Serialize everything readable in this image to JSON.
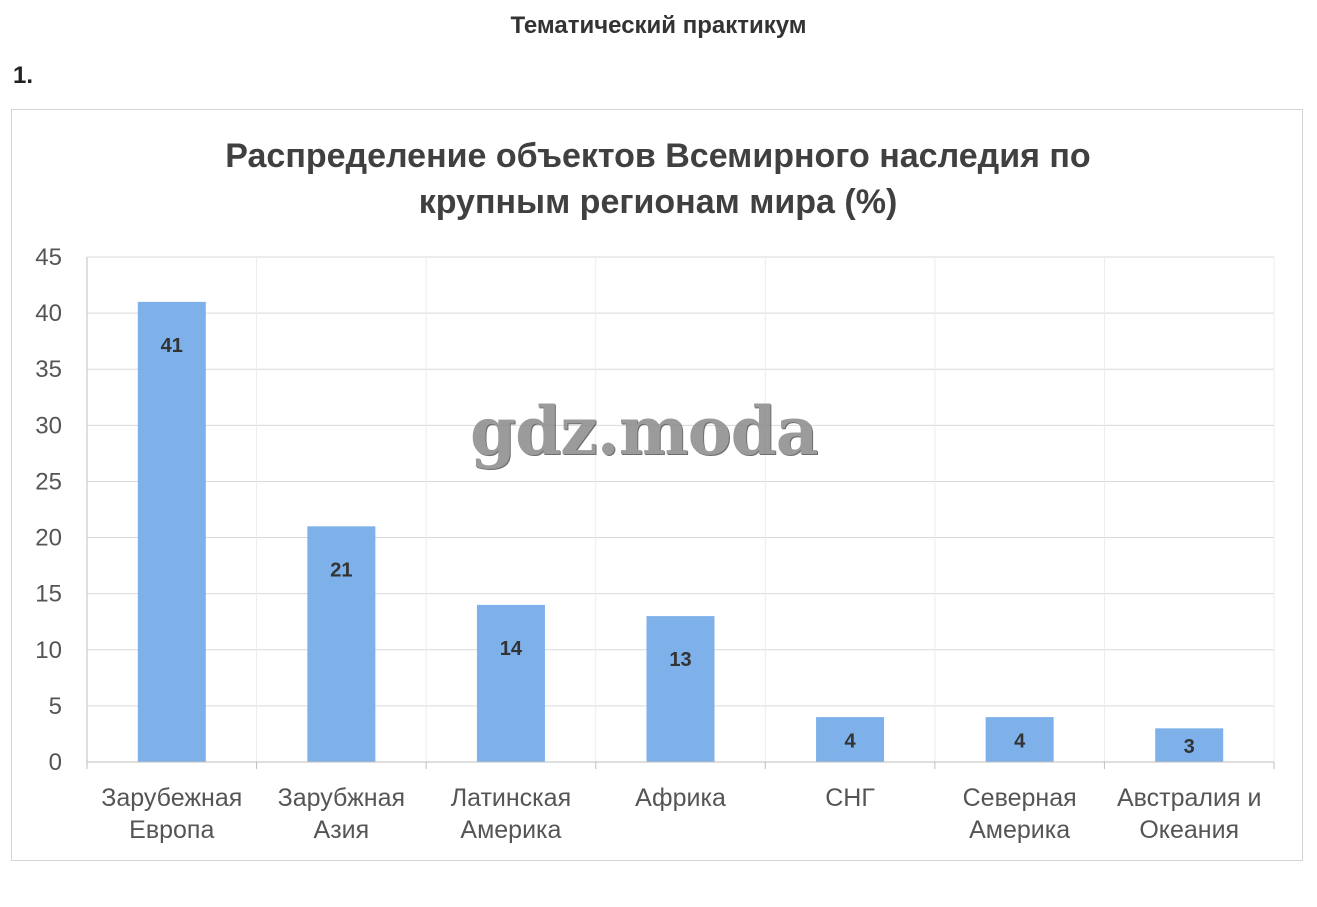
{
  "page": {
    "heading": "Тематический практикум",
    "task_number": "1."
  },
  "watermark": "gdz.moda",
  "colors": {
    "bar": "#7eb0ea",
    "grid": "#d9d9d9",
    "axis": "#bfbfbf",
    "title": "#404040",
    "text": "#555555"
  },
  "chart_data": {
    "type": "bar",
    "title_lines": [
      "Распределение объектов Всемирного наследия по",
      "крупным регионам мира (%)"
    ],
    "categories": [
      [
        "Зарубежная",
        "Европа"
      ],
      [
        "Зарубжная",
        "Азия"
      ],
      [
        "Латинская",
        "Америка"
      ],
      [
        "Африка"
      ],
      [
        "СНГ"
      ],
      [
        "Северная",
        "Америка"
      ],
      [
        "Австралия и",
        "Океания"
      ]
    ],
    "values": [
      41,
      21,
      14,
      13,
      4,
      4,
      3
    ],
    "data_labels": [
      "41",
      "21",
      "14",
      "13",
      "4",
      "4",
      "3"
    ],
    "ylim": [
      0,
      45
    ],
    "yticks": [
      0,
      5,
      10,
      15,
      20,
      25,
      30,
      35,
      40,
      45
    ],
    "grid": true,
    "legend": "none",
    "xlabel": "",
    "ylabel": ""
  }
}
